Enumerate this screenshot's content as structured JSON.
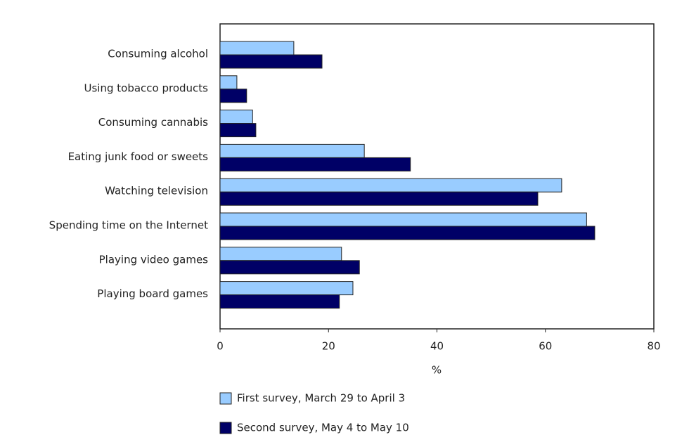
{
  "chart_data": {
    "type": "hbar",
    "categories": [
      "Consuming alcohol",
      "Using tobacco products",
      "Consuming cannabis",
      "Eating junk food or sweets",
      "Watching television",
      "Spending time on the Internet",
      "Playing video games",
      "Playing board games"
    ],
    "series": [
      {
        "name": "First survey, March 29 to April 3",
        "color": "#99ccff",
        "values": [
          13.6,
          3.1,
          6.0,
          26.6,
          63.0,
          67.6,
          22.4,
          24.5
        ]
      },
      {
        "name": "Second survey, May 4 to May 10",
        "color": "#000066",
        "values": [
          18.8,
          4.9,
          6.6,
          35.1,
          58.6,
          69.1,
          25.7,
          22.0
        ]
      }
    ],
    "xlim": [
      0,
      80
    ],
    "xticks": [
      0,
      20,
      40,
      60,
      80
    ],
    "xlabel": "%",
    "grid": false
  }
}
